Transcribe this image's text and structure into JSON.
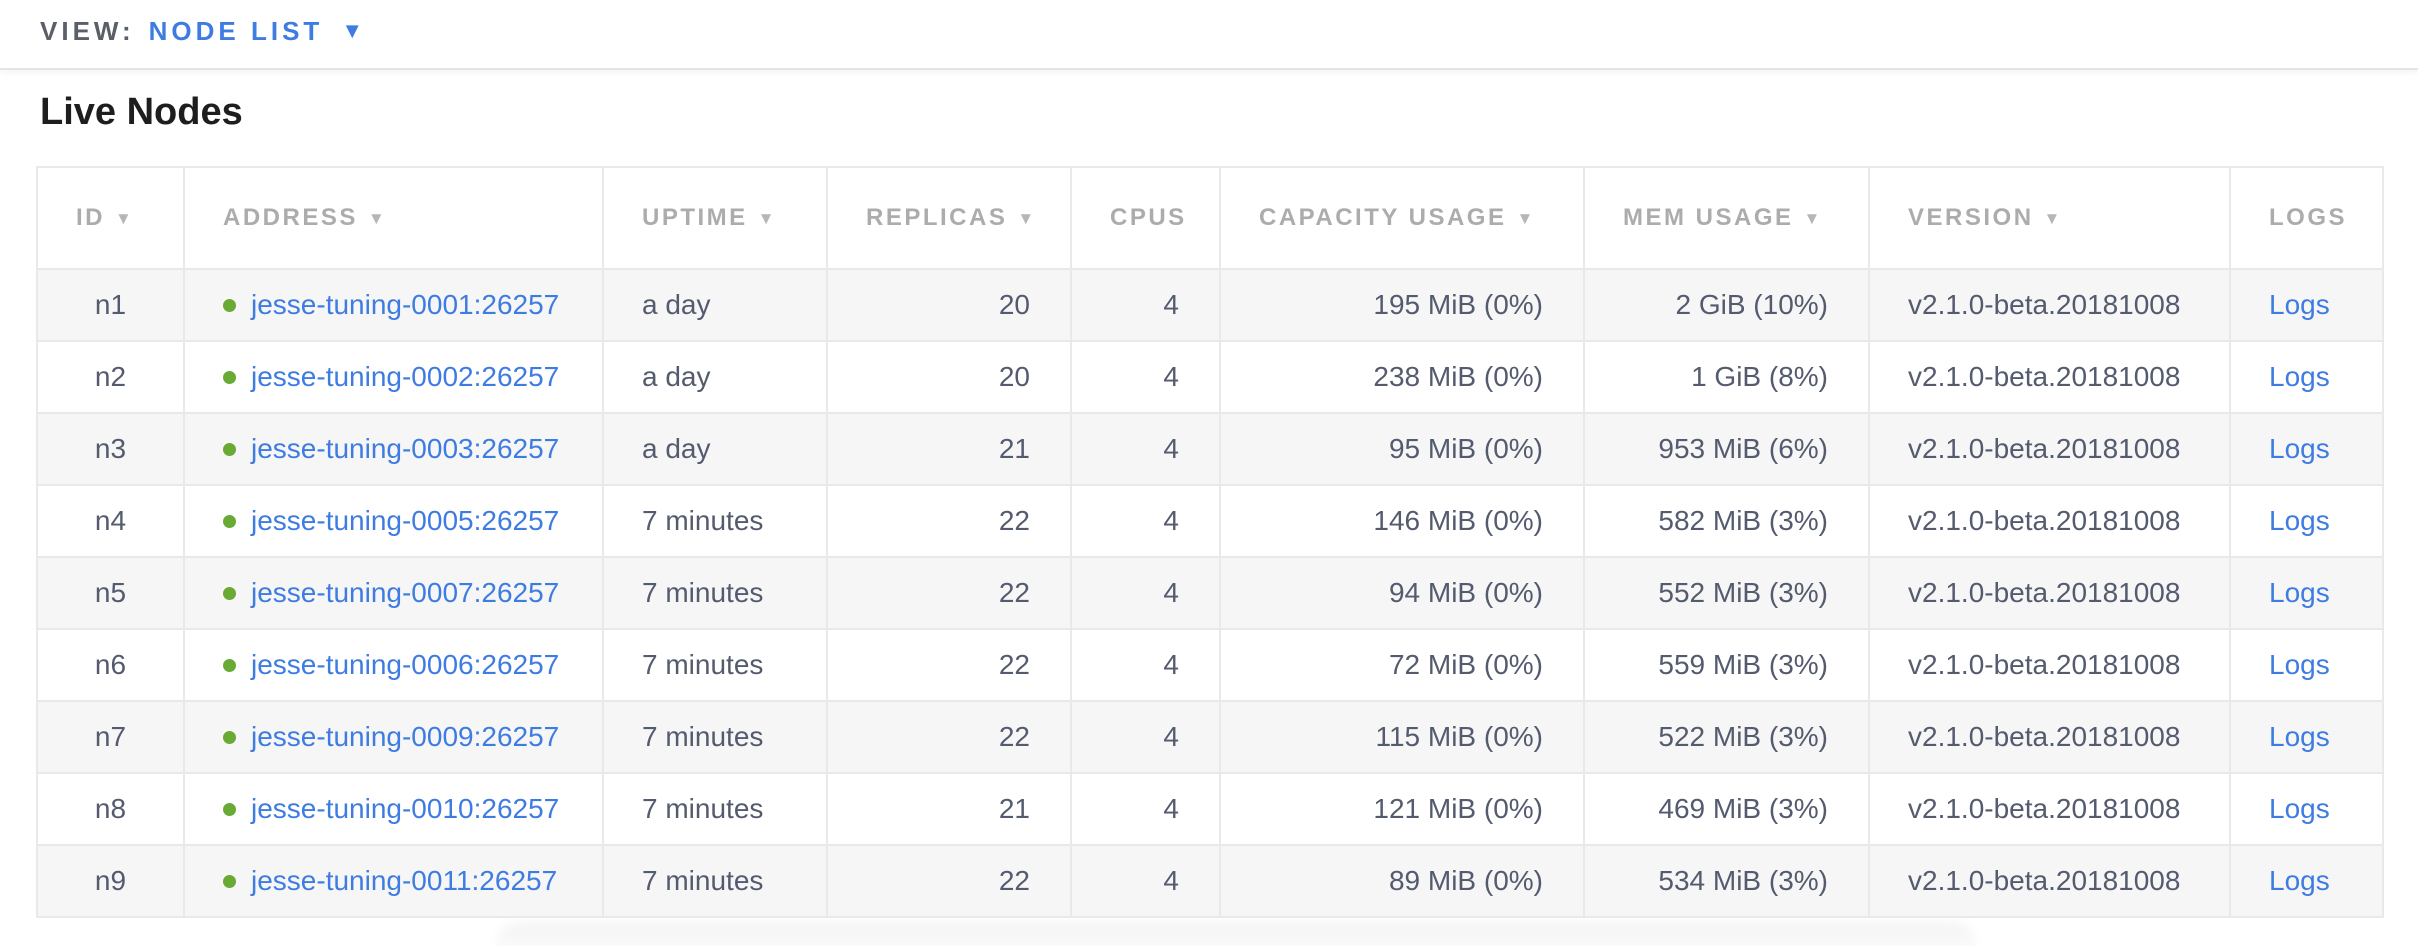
{
  "view_bar": {
    "label": "VIEW:",
    "selected_view": "NODE LIST"
  },
  "page": {
    "title": "Live Nodes"
  },
  "icons": {
    "sort_desc": "▼",
    "dropdown_caret": "▼",
    "live_status": "green-dot"
  },
  "colors": {
    "accent_blue": "#3e7ce2",
    "status_live_green": "#68aa33",
    "row_stripe": "#f6f6f6",
    "header_text": "#acacac",
    "cell_text": "#545b6e"
  },
  "table": {
    "columns": [
      {
        "key": "id",
        "label": "ID",
        "sortable": true,
        "align": "center"
      },
      {
        "key": "address",
        "label": "ADDRESS",
        "sortable": true,
        "align": "left"
      },
      {
        "key": "uptime",
        "label": "UPTIME",
        "sortable": true,
        "align": "left"
      },
      {
        "key": "replicas",
        "label": "REPLICAS",
        "sortable": true,
        "align": "right"
      },
      {
        "key": "cpus",
        "label": "CPUS",
        "sortable": false,
        "align": "right"
      },
      {
        "key": "capacity",
        "label": "CAPACITY USAGE",
        "sortable": true,
        "align": "right"
      },
      {
        "key": "mem",
        "label": "MEM USAGE",
        "sortable": true,
        "align": "right"
      },
      {
        "key": "version",
        "label": "VERSION",
        "sortable": true,
        "align": "left"
      },
      {
        "key": "logs",
        "label": "LOGS",
        "sortable": false,
        "align": "left"
      }
    ],
    "rows": [
      {
        "id": "n1",
        "address": "jesse-tuning-0001:26257",
        "status": "live",
        "uptime": "a day",
        "replicas": "20",
        "cpus": "4",
        "capacity": "195 MiB (0%)",
        "mem": "2 GiB (10%)",
        "version": "v2.1.0-beta.20181008",
        "logs": "Logs"
      },
      {
        "id": "n2",
        "address": "jesse-tuning-0002:26257",
        "status": "live",
        "uptime": "a day",
        "replicas": "20",
        "cpus": "4",
        "capacity": "238 MiB (0%)",
        "mem": "1 GiB (8%)",
        "version": "v2.1.0-beta.20181008",
        "logs": "Logs"
      },
      {
        "id": "n3",
        "address": "jesse-tuning-0003:26257",
        "status": "live",
        "uptime": "a day",
        "replicas": "21",
        "cpus": "4",
        "capacity": "95 MiB (0%)",
        "mem": "953 MiB (6%)",
        "version": "v2.1.0-beta.20181008",
        "logs": "Logs"
      },
      {
        "id": "n4",
        "address": "jesse-tuning-0005:26257",
        "status": "live",
        "uptime": "7 minutes",
        "replicas": "22",
        "cpus": "4",
        "capacity": "146 MiB (0%)",
        "mem": "582 MiB (3%)",
        "version": "v2.1.0-beta.20181008",
        "logs": "Logs"
      },
      {
        "id": "n5",
        "address": "jesse-tuning-0007:26257",
        "status": "live",
        "uptime": "7 minutes",
        "replicas": "22",
        "cpus": "4",
        "capacity": "94 MiB (0%)",
        "mem": "552 MiB (3%)",
        "version": "v2.1.0-beta.20181008",
        "logs": "Logs"
      },
      {
        "id": "n6",
        "address": "jesse-tuning-0006:26257",
        "status": "live",
        "uptime": "7 minutes",
        "replicas": "22",
        "cpus": "4",
        "capacity": "72 MiB (0%)",
        "mem": "559 MiB (3%)",
        "version": "v2.1.0-beta.20181008",
        "logs": "Logs"
      },
      {
        "id": "n7",
        "address": "jesse-tuning-0009:26257",
        "status": "live",
        "uptime": "7 minutes",
        "replicas": "22",
        "cpus": "4",
        "capacity": "115 MiB (0%)",
        "mem": "522 MiB (3%)",
        "version": "v2.1.0-beta.20181008",
        "logs": "Logs"
      },
      {
        "id": "n8",
        "address": "jesse-tuning-0010:26257",
        "status": "live",
        "uptime": "7 minutes",
        "replicas": "21",
        "cpus": "4",
        "capacity": "121 MiB (0%)",
        "mem": "469 MiB (3%)",
        "version": "v2.1.0-beta.20181008",
        "logs": "Logs"
      },
      {
        "id": "n9",
        "address": "jesse-tuning-0011:26257",
        "status": "live",
        "uptime": "7 minutes",
        "replicas": "22",
        "cpus": "4",
        "capacity": "89 MiB (0%)",
        "mem": "534 MiB (3%)",
        "version": "v2.1.0-beta.20181008",
        "logs": "Logs"
      }
    ]
  }
}
